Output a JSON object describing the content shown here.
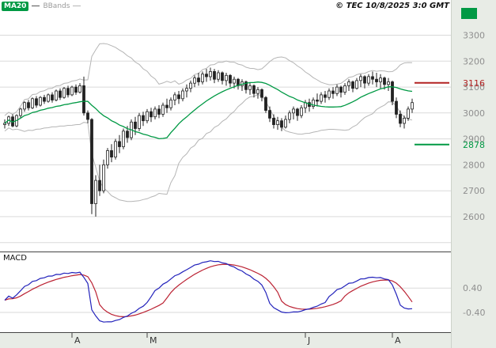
{
  "header": {
    "legend_ma20": "MA20",
    "legend_bbands": "BBands",
    "copyright": "© TEC 10/8/2025 3:0 GMT"
  },
  "macd_panel": {
    "label": "MACD",
    "axis_ticks": [
      {
        "label": "0.40",
        "value": 0.4
      },
      {
        "label": "-0.40",
        "value": -0.4
      }
    ],
    "display_range": [
      -1.0,
      1.5
    ],
    "indicator": {
      "fast": 12,
      "slow": 26,
      "signal": 9
    }
  },
  "colors": {
    "green": "#009944",
    "red": "#b22222",
    "candle": "#222222",
    "bband": "#b5b5b5",
    "grid": "#dadada",
    "axis_text": "#8f8f8f",
    "month_text": "#333333",
    "macd_line": "#2222bb",
    "macd_signal": "#bb2233",
    "separator": "#444444",
    "panel_bg": "#ffffff",
    "margin_bg": "#e8ece6"
  },
  "chart_data": {
    "type": "candlestick",
    "title": "",
    "description": "Daily OHLC price chart with MA20, Bollinger Bands, horizontal support/resistance levels and a MACD sub-panel",
    "price_axis": {
      "ticks": [
        3300,
        3200,
        3100,
        3000,
        2900,
        2800,
        2700,
        2600
      ],
      "gridlines": [
        3300,
        3200,
        3100,
        3000,
        2900,
        2800,
        2700,
        2600,
        2500
      ],
      "range": [
        2490,
        3390
      ]
    },
    "indicators": {
      "ma_period": 20,
      "bb_period": 20,
      "bb_stddev": 2
    },
    "levels": {
      "resistance": {
        "value": 3116,
        "label": "3116"
      },
      "support": {
        "value": 2878,
        "label": "2878"
      }
    },
    "x_axis": {
      "month_ticks": [
        {
          "label": "A",
          "index": 17
        },
        {
          "label": "M",
          "index": 36
        },
        {
          "label": "J",
          "index": 76
        },
        {
          "label": "A",
          "index": 98
        }
      ]
    },
    "ohlc": [
      [
        2955,
        2975,
        2940,
        2960
      ],
      [
        2960,
        2990,
        2950,
        2985
      ],
      [
        2985,
        2995,
        2945,
        2950
      ],
      [
        2950,
        2995,
        2945,
        2990
      ],
      [
        2990,
        3020,
        2980,
        3015
      ],
      [
        3015,
        3045,
        3005,
        3040
      ],
      [
        3040,
        3050,
        3010,
        3020
      ],
      [
        3020,
        3060,
        3015,
        3055
      ],
      [
        3055,
        3065,
        3020,
        3030
      ],
      [
        3030,
        3065,
        3025,
        3060
      ],
      [
        3060,
        3070,
        3035,
        3045
      ],
      [
        3045,
        3075,
        3040,
        3070
      ],
      [
        3070,
        3080,
        3040,
        3050
      ],
      [
        3050,
        3090,
        3045,
        3085
      ],
      [
        3085,
        3095,
        3050,
        3060
      ],
      [
        3060,
        3100,
        3055,
        3095
      ],
      [
        3095,
        3105,
        3060,
        3070
      ],
      [
        3070,
        3105,
        3065,
        3100
      ],
      [
        3100,
        3110,
        3070,
        3080
      ],
      [
        3080,
        3115,
        3075,
        3105
      ],
      [
        3105,
        3140,
        2990,
        3000
      ],
      [
        3000,
        3010,
        2960,
        2975
      ],
      [
        2975,
        2980,
        2610,
        2650
      ],
      [
        2650,
        2760,
        2600,
        2740
      ],
      [
        2740,
        2800,
        2680,
        2700
      ],
      [
        2700,
        2820,
        2690,
        2800
      ],
      [
        2800,
        2865,
        2785,
        2855
      ],
      [
        2855,
        2880,
        2810,
        2830
      ],
      [
        2830,
        2900,
        2820,
        2890
      ],
      [
        2890,
        2915,
        2845,
        2870
      ],
      [
        2870,
        2940,
        2860,
        2930
      ],
      [
        2930,
        2950,
        2885,
        2905
      ],
      [
        2905,
        2975,
        2895,
        2965
      ],
      [
        2965,
        2985,
        2915,
        2940
      ],
      [
        2940,
        3000,
        2930,
        2990
      ],
      [
        2990,
        3005,
        2950,
        2970
      ],
      [
        2970,
        3015,
        2960,
        3005
      ],
      [
        3005,
        3020,
        2965,
        2985
      ],
      [
        2985,
        3025,
        2975,
        3015
      ],
      [
        3015,
        3030,
        2980,
        2995
      ],
      [
        2995,
        3040,
        2985,
        3030
      ],
      [
        3030,
        3055,
        3000,
        3020
      ],
      [
        3020,
        3060,
        3010,
        3050
      ],
      [
        3050,
        3080,
        3030,
        3070
      ],
      [
        3070,
        3085,
        3035,
        3055
      ],
      [
        3055,
        3095,
        3045,
        3085
      ],
      [
        3085,
        3110,
        3060,
        3095
      ],
      [
        3095,
        3125,
        3080,
        3115
      ],
      [
        3115,
        3145,
        3100,
        3135
      ],
      [
        3135,
        3155,
        3105,
        3120
      ],
      [
        3120,
        3160,
        3110,
        3150
      ],
      [
        3150,
        3170,
        3120,
        3140
      ],
      [
        3140,
        3175,
        3125,
        3160
      ],
      [
        3160,
        3170,
        3115,
        3130
      ],
      [
        3130,
        3165,
        3120,
        3155
      ],
      [
        3155,
        3160,
        3110,
        3125
      ],
      [
        3125,
        3155,
        3105,
        3145
      ],
      [
        3145,
        3150,
        3100,
        3115
      ],
      [
        3115,
        3140,
        3095,
        3130
      ],
      [
        3130,
        3135,
        3090,
        3105
      ],
      [
        3105,
        3130,
        3085,
        3120
      ],
      [
        3120,
        3125,
        3075,
        3090
      ],
      [
        3090,
        3115,
        3070,
        3105
      ],
      [
        3105,
        3110,
        3060,
        3075
      ],
      [
        3075,
        3100,
        3055,
        3090
      ],
      [
        3090,
        3095,
        3045,
        3060
      ],
      [
        3060,
        3065,
        3000,
        3010
      ],
      [
        3010,
        3025,
        2965,
        2980
      ],
      [
        2980,
        2995,
        2940,
        2955
      ],
      [
        2955,
        2985,
        2935,
        2970
      ],
      [
        2970,
        2980,
        2930,
        2945
      ],
      [
        2945,
        2990,
        2940,
        2975
      ],
      [
        2975,
        3010,
        2960,
        3000
      ],
      [
        3000,
        3025,
        2975,
        3015
      ],
      [
        3015,
        3020,
        2970,
        2990
      ],
      [
        2990,
        3030,
        2980,
        3020
      ],
      [
        3020,
        3050,
        3000,
        3040
      ],
      [
        3040,
        3055,
        3005,
        3025
      ],
      [
        3025,
        3060,
        3015,
        3050
      ],
      [
        3050,
        3075,
        3025,
        3045
      ],
      [
        3045,
        3080,
        3035,
        3070
      ],
      [
        3070,
        3085,
        3040,
        3060
      ],
      [
        3060,
        3095,
        3050,
        3085
      ],
      [
        3085,
        3100,
        3055,
        3075
      ],
      [
        3075,
        3110,
        3065,
        3100
      ],
      [
        3100,
        3105,
        3060,
        3080
      ],
      [
        3080,
        3115,
        3070,
        3105
      ],
      [
        3105,
        3130,
        3085,
        3120
      ],
      [
        3120,
        3125,
        3080,
        3095
      ],
      [
        3095,
        3135,
        3090,
        3125
      ],
      [
        3125,
        3150,
        3100,
        3140
      ],
      [
        3140,
        3145,
        3095,
        3115
      ],
      [
        3115,
        3150,
        3105,
        3140
      ],
      [
        3140,
        3160,
        3110,
        3130
      ],
      [
        3130,
        3155,
        3100,
        3120
      ],
      [
        3120,
        3150,
        3095,
        3135
      ],
      [
        3135,
        3140,
        3090,
        3110
      ],
      [
        3110,
        3135,
        3085,
        3120
      ],
      [
        3120,
        3125,
        3030,
        3045
      ],
      [
        3045,
        3060,
        2980,
        2995
      ],
      [
        2995,
        3010,
        2945,
        2960
      ],
      [
        2960,
        2990,
        2940,
        2980
      ],
      [
        2980,
        3025,
        2970,
        3015
      ],
      [
        3015,
        3055,
        3000,
        3040
      ]
    ]
  }
}
